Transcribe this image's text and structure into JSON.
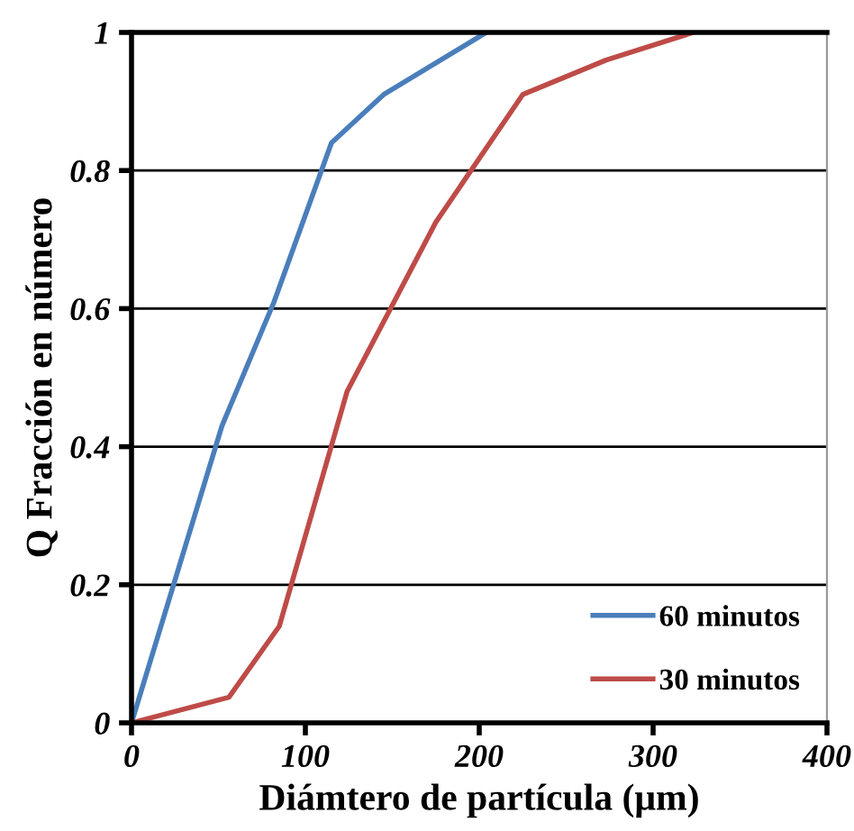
{
  "chart_data": {
    "type": "line",
    "xlabel": "Diámtero de partícula (μm)",
    "ylabel": "Q Fracción en número",
    "xlim": [
      0,
      400
    ],
    "xticks": [
      0,
      100,
      200,
      300,
      400
    ],
    "ylim": [
      0,
      1
    ],
    "yticks": [
      0,
      0.2,
      0.4,
      0.6,
      0.8,
      1
    ],
    "grid": "y",
    "legend": "bottom right",
    "marker": "none",
    "line_style": "solid",
    "series": [
      {
        "name": "60 minutos",
        "color": "#4a7ebb",
        "x": [
          0,
          52,
          82,
          115,
          145,
          204
        ],
        "values": [
          0,
          0.43,
          0.61,
          0.84,
          0.91,
          1
        ]
      },
      {
        "name": "30 minutos",
        "color": "#be4b48",
        "x": [
          0,
          56,
          85,
          124,
          175,
          225,
          273,
          323
        ],
        "values": [
          0,
          0.037,
          0.14,
          0.48,
          0.725,
          0.91,
          0.96,
          1
        ]
      }
    ]
  }
}
